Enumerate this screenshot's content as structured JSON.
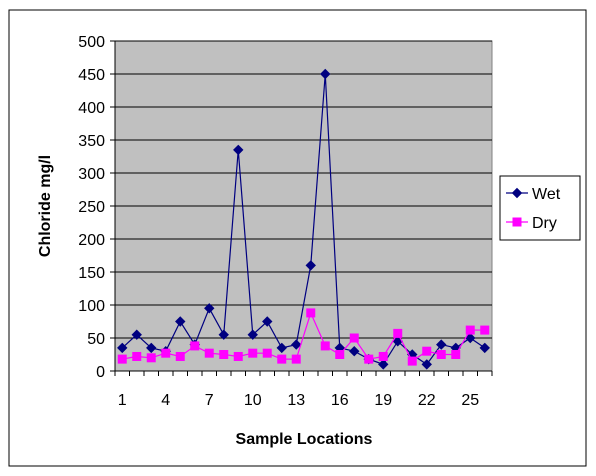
{
  "chart_data": {
    "type": "line",
    "title": "",
    "xlabel": "Sample Locations",
    "ylabel": "Chloride mg/l",
    "ylim": [
      0,
      500
    ],
    "yticks": [
      0,
      50,
      100,
      150,
      200,
      250,
      300,
      350,
      400,
      450,
      500
    ],
    "x": [
      1,
      2,
      3,
      4,
      5,
      6,
      7,
      8,
      9,
      10,
      11,
      12,
      13,
      14,
      15,
      16,
      17,
      18,
      19,
      20,
      21,
      22,
      23,
      24,
      25,
      26
    ],
    "xtick_labels": [
      "1",
      "4",
      "7",
      "10",
      "13",
      "16",
      "19",
      "22",
      "25"
    ],
    "xtick_positions": [
      1,
      4,
      7,
      10,
      13,
      16,
      19,
      22,
      25
    ],
    "grid": true,
    "legend_position": "right",
    "background_color": "#C0C0C0",
    "series": [
      {
        "name": "Wet",
        "color": "#000080",
        "marker": "diamond",
        "values": [
          35,
          55,
          35,
          30,
          75,
          40,
          95,
          55,
          335,
          55,
          75,
          35,
          40,
          160,
          450,
          35,
          30,
          18,
          10,
          45,
          25,
          10,
          40,
          35,
          50,
          35
        ]
      },
      {
        "name": "Dry",
        "color": "#FF00FF",
        "marker": "square",
        "values": [
          18,
          22,
          20,
          27,
          22,
          38,
          27,
          25,
          22,
          27,
          27,
          18,
          18,
          88,
          38,
          25,
          50,
          18,
          22,
          57,
          15,
          30,
          25,
          25,
          62,
          62
        ]
      }
    ]
  }
}
